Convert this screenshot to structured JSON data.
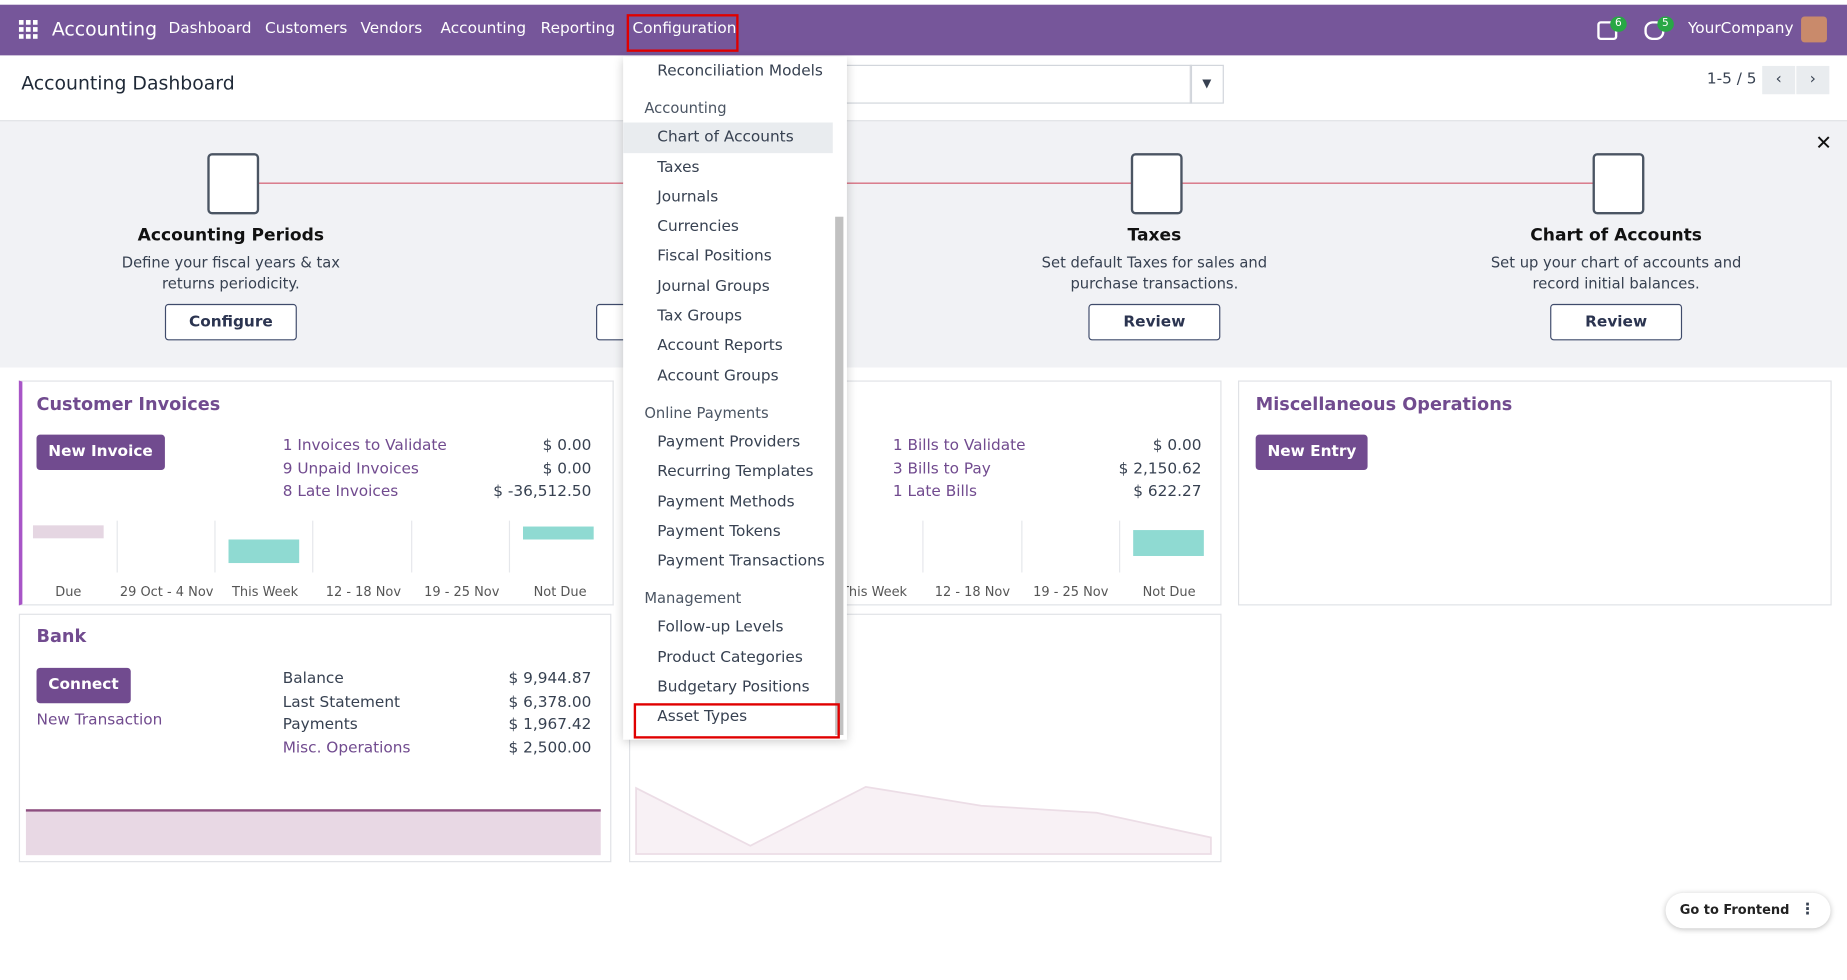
{
  "navbar": {
    "app": "Accounting",
    "menu": [
      "Dashboard",
      "Customers",
      "Vendors",
      "Accounting",
      "Reporting",
      "Configuration"
    ],
    "badges": [
      "6",
      "5"
    ],
    "company": "YourCompany"
  },
  "control_panel": {
    "title": "Accounting Dashboard",
    "pager": "1-5 / 5"
  },
  "onboarding": [
    {
      "title": "Accounting Periods",
      "description": "Define your fiscal years & tax returns periodicity.",
      "button": "Configure"
    },
    {
      "title": "Taxes",
      "description": "Set default Taxes for sales and purchase transactions.",
      "button": "Review"
    },
    {
      "title": "Chart of Accounts",
      "description": "Set up your chart of accounts and record initial balances.",
      "button": "Review"
    }
  ],
  "cards": {
    "customer_invoices": {
      "title": "Customer Invoices",
      "button": "New Invoice",
      "rows": [
        [
          "1 Invoices to Validate",
          "$ 0.00"
        ],
        [
          "9 Unpaid Invoices",
          "$ 0.00"
        ],
        [
          "8 Late Invoices",
          "$ -36,512.50"
        ]
      ],
      "chart_labels": [
        "Due",
        "29 Oct - 4 Nov",
        "This Week",
        "12 - 18 Nov",
        "19 - 25 Nov",
        "Not Due"
      ]
    },
    "vendor_bills": {
      "rows": [
        [
          "1 Bills to Validate",
          "$ 0.00"
        ],
        [
          "3 Bills to Pay",
          "$ 2,150.62"
        ],
        [
          "1 Late Bills",
          "$ 622.27"
        ]
      ],
      "chart_labels": [
        "This Week",
        "12 - 18 Nov",
        "19 - 25 Nov",
        "Not Due"
      ]
    },
    "misc": {
      "title": "Miscellaneous Operations",
      "button": "New Entry"
    },
    "bank": {
      "title": "Bank",
      "button": "Connect",
      "link": "New Transaction",
      "rows": [
        [
          "Balance",
          "$ 9,944.87"
        ],
        [
          "Last Statement",
          "$ 6,378.00"
        ],
        [
          "Payments",
          "$ 1,967.42"
        ],
        [
          "Misc. Operations",
          "$ 2,500.00"
        ]
      ]
    }
  },
  "dropdown": {
    "top_item": "Reconciliation Models",
    "sections": [
      {
        "header": "Accounting",
        "items": [
          "Chart of Accounts",
          "Taxes",
          "Journals",
          "Currencies",
          "Fiscal Positions",
          "Journal Groups",
          "Tax Groups",
          "Account Reports",
          "Account Groups"
        ]
      },
      {
        "header": "Online Payments",
        "items": [
          "Payment Providers",
          "Recurring Templates",
          "Payment Methods",
          "Payment Tokens",
          "Payment Transactions"
        ]
      },
      {
        "header": "Management",
        "items": [
          "Follow-up Levels",
          "Product Categories",
          "Budgetary Positions",
          "Asset Types"
        ]
      }
    ]
  },
  "footer_button": "Go to Frontend"
}
